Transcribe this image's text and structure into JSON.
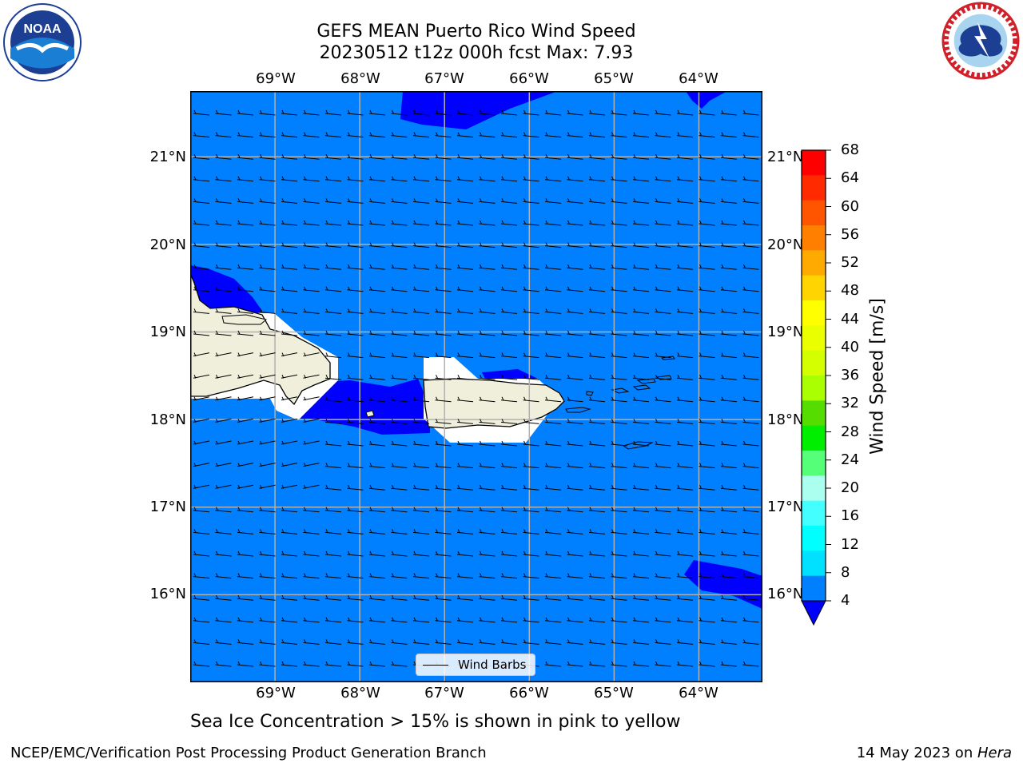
{
  "title_line1": "GEFS MEAN Puerto Rico Wind Speed",
  "title_line2": "20230512 t12z 000h fcst   Max: 7.93",
  "map": {
    "lon_ticks": [
      "69°W",
      "68°W",
      "67°W",
      "66°W",
      "65°W",
      "64°W"
    ],
    "lat_ticks": [
      "21°N",
      "20°N",
      "19°N",
      "18°N",
      "17°N",
      "16°N"
    ],
    "lon_values": [
      -69,
      -68,
      -67,
      -66,
      -65,
      -64
    ],
    "lat_values": [
      21,
      20,
      19,
      18,
      17,
      16
    ],
    "extent": {
      "lon": [
        -70,
        -63.25
      ],
      "lat": [
        15,
        21.75
      ]
    },
    "colors": {
      "ocean": "#0080ff",
      "low_wind": "#0000ff",
      "land": "#efefdc",
      "masked": "#ffffff",
      "grid": "#b0b0b0"
    }
  },
  "colorbar": {
    "label": "Wind Speed [m/s]",
    "ticks": [
      "68",
      "64",
      "60",
      "56",
      "52",
      "48",
      "44",
      "40",
      "36",
      "32",
      "28",
      "24",
      "20",
      "16",
      "12",
      "8",
      "4"
    ],
    "colors_top_to_bottom": [
      "#ff0000",
      "#ff2a00",
      "#ff5500",
      "#ff8000",
      "#ffaa00",
      "#ffd400",
      "#ffff00",
      "#eaff00",
      "#d4ff00",
      "#aaff00",
      "#55dd00",
      "#00ee00",
      "#55ff77",
      "#aaffee",
      "#44ffff",
      "#00ffff",
      "#00e0ff",
      "#0080ff"
    ],
    "under_color": "#0000ff"
  },
  "legend_label": "Wind Barbs",
  "bottom_note": "Sea Ice Concentration > 15% is shown in pink to yellow",
  "footer_left": "NCEP/EMC/Verification Post Processing Product Generation Branch",
  "footer_date": "14 May 2023 on ",
  "footer_host": "Hera",
  "logos": {
    "left": "noaa-logo",
    "right": "nws-logo"
  }
}
